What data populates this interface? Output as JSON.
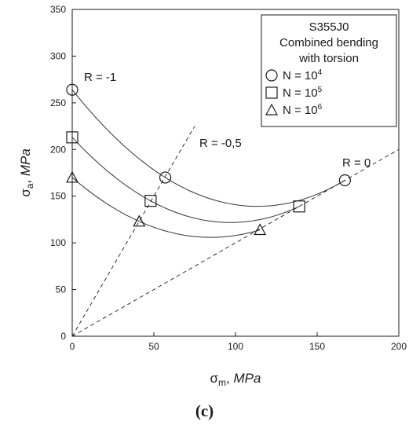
{
  "chart_data": {
    "type": "scatter",
    "xlabel": {
      "symbol": "σ",
      "sub": "m",
      "sep": ", ",
      "unit": "MPa"
    },
    "ylabel": {
      "symbol": "σ",
      "sub": "a",
      "sep": ", ",
      "unit": "MPa"
    },
    "xlim": [
      0,
      200
    ],
    "ylim": [
      0,
      350
    ],
    "xticks": [
      "0",
      "50",
      "100",
      "150",
      "200"
    ],
    "yticks": [
      "0",
      "50",
      "100",
      "150",
      "200",
      "250",
      "300",
      "350"
    ],
    "grid": false,
    "legend": {
      "position": "top-right",
      "title_lines": [
        "S355J0",
        "Combined bending",
        "with torsion"
      ]
    },
    "series": [
      {
        "label_prefix": "N = 10",
        "label_exp": "4",
        "marker": "circle",
        "points": [
          {
            "x": 0,
            "y": 264
          },
          {
            "x": 57,
            "y": 170
          },
          {
            "x": 167,
            "y": 167
          }
        ]
      },
      {
        "label_prefix": "N = 10",
        "label_exp": "5",
        "marker": "square",
        "points": [
          {
            "x": 0,
            "y": 213
          },
          {
            "x": 48,
            "y": 145
          },
          {
            "x": 139,
            "y": 139
          }
        ]
      },
      {
        "label_prefix": "N = 10",
        "label_exp": "6",
        "marker": "triangle",
        "points": [
          {
            "x": 0,
            "y": 170
          },
          {
            "x": 41,
            "y": 123
          },
          {
            "x": 115,
            "y": 114
          }
        ]
      }
    ],
    "reference_lines": [
      {
        "label": "R = -1",
        "slope": null
      },
      {
        "label": "R = -0,5",
        "slope": 3
      },
      {
        "label": "R = 0",
        "slope": 1
      }
    ]
  },
  "caption": "(c)"
}
